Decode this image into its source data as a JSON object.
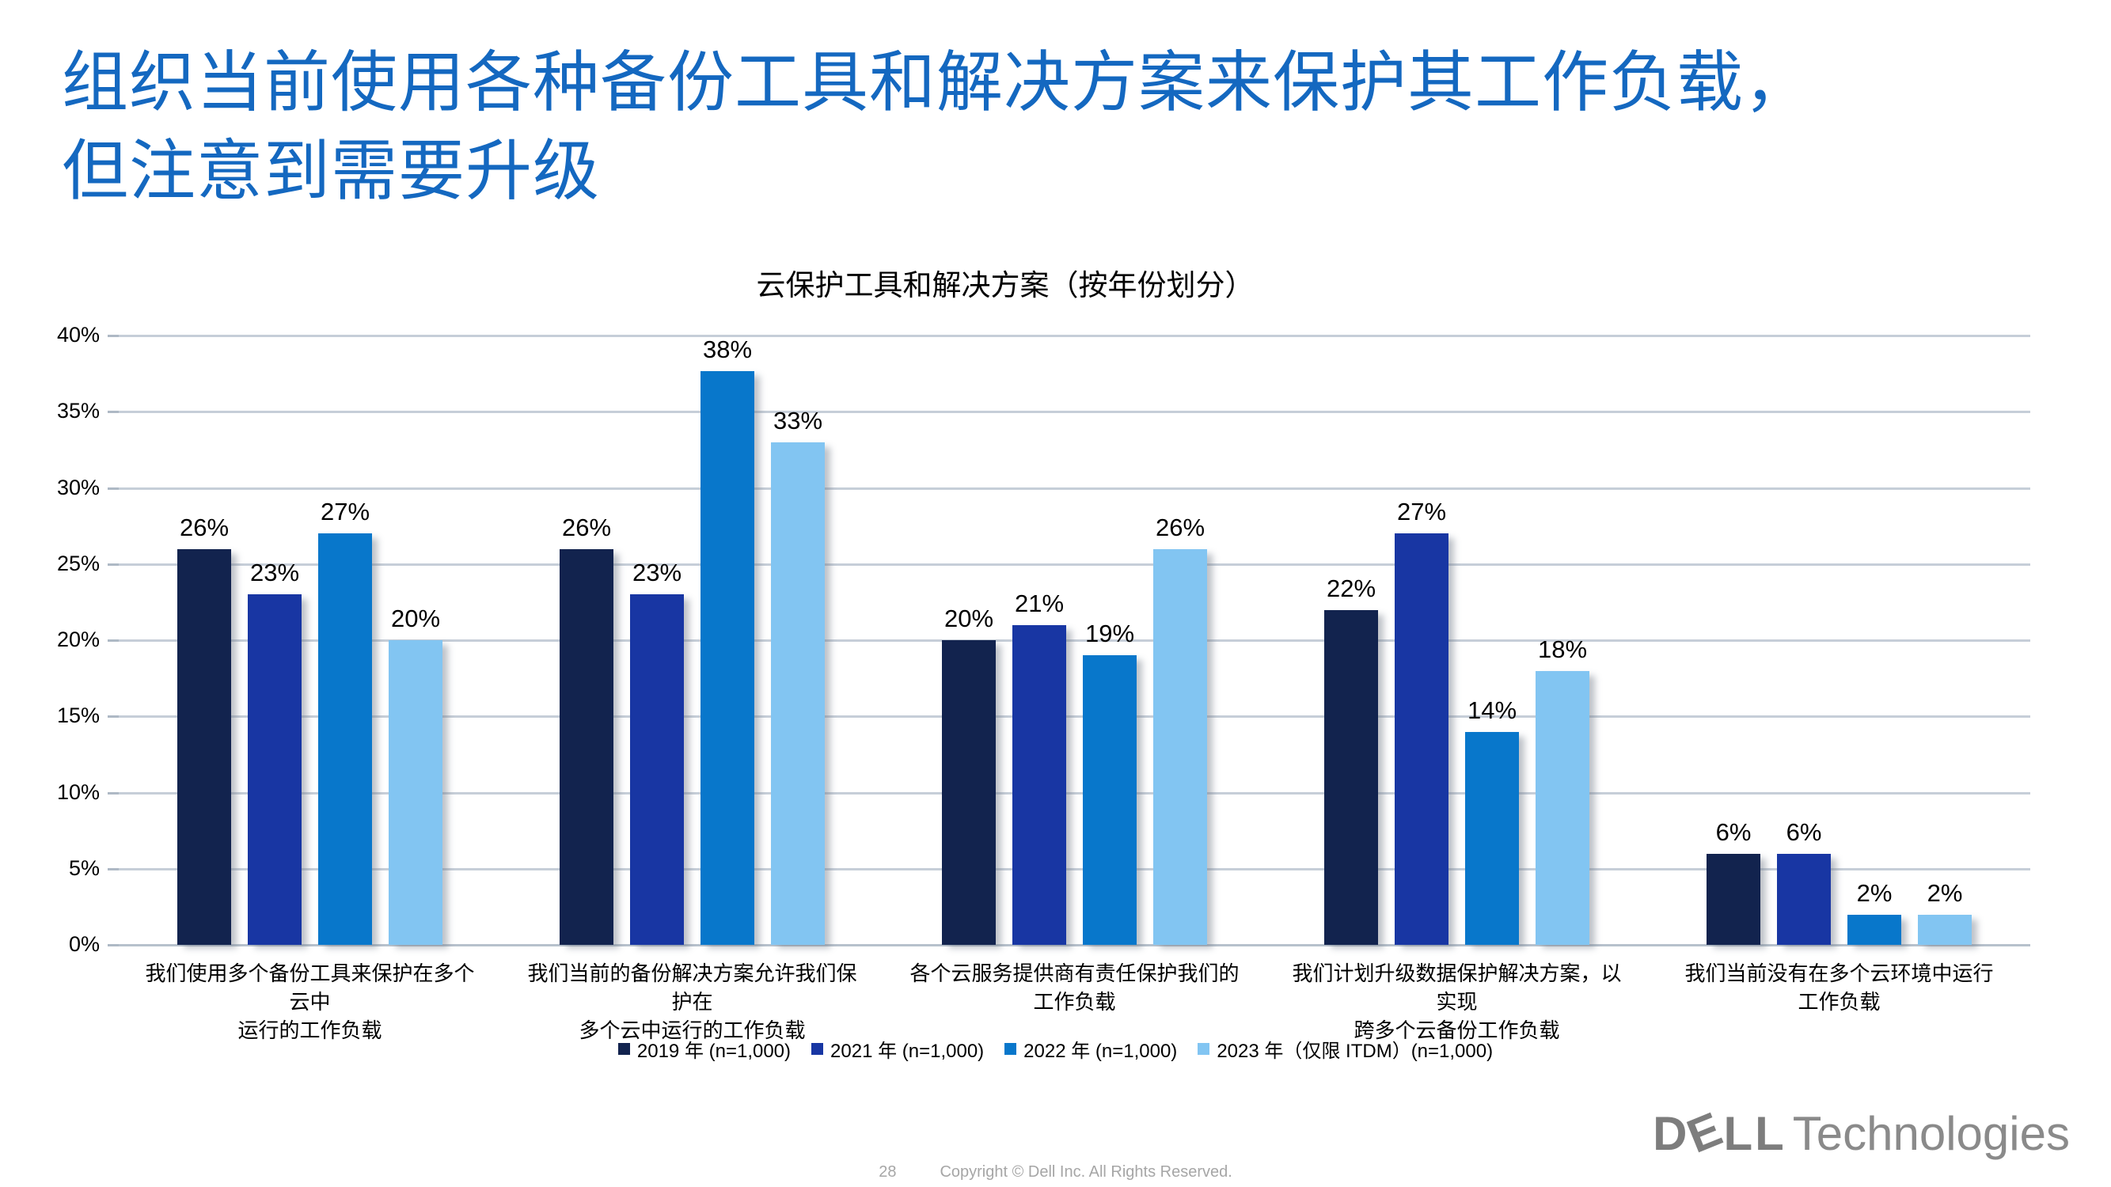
{
  "slide": {
    "title_lines": [
      "组织当前使用各种备份工具和解决方案来保护其工作负载，",
      "但注意到需要升级"
    ],
    "title_color": "#1468c0"
  },
  "chart_data": {
    "type": "bar",
    "title": "云保护工具和解决方案（按年份划分）",
    "categories": [
      "我们使用多个备份工具来保护在多个云中\n运行的工作负载",
      "我们当前的备份解决方案允许我们保护在\n多个云中运行的工作负载",
      "各个云服务提供商有责任保护我们的\n工作负载",
      "我们计划升级数据保护解决方案，以实现\n跨多个云备份工作负载",
      "我们当前没有在多个云环境中运行\n工作负载"
    ],
    "series": [
      {
        "name": "2019 年 (n=1,000)",
        "color": "#12234e",
        "values": [
          26,
          26,
          20,
          22,
          6
        ]
      },
      {
        "name": "2021 年 (n=1,000)",
        "color": "#1836a3",
        "values": [
          23,
          23,
          21,
          27,
          6
        ]
      },
      {
        "name": "2022 年 (n=1,000)",
        "color": "#0877cb",
        "values": [
          27,
          38,
          19,
          14,
          2
        ]
      },
      {
        "name": "2023 年（仅限 ITDM）(n=1,000)",
        "color": "#82c5f2",
        "values": [
          20,
          33,
          26,
          18,
          2
        ]
      }
    ],
    "ylim": [
      0,
      40
    ],
    "ytick_step": 5,
    "tick_suffix": "%",
    "value_suffix": "%",
    "grid": "horizontal",
    "legend_position": "bottom"
  },
  "footer": {
    "page_number": "28",
    "copyright": "Copyright © Dell Inc. All Rights Reserved."
  },
  "logo": {
    "dell_d": "D",
    "dell_e": "E",
    "dell_ll": "LL",
    "technologies": "Technologies"
  }
}
